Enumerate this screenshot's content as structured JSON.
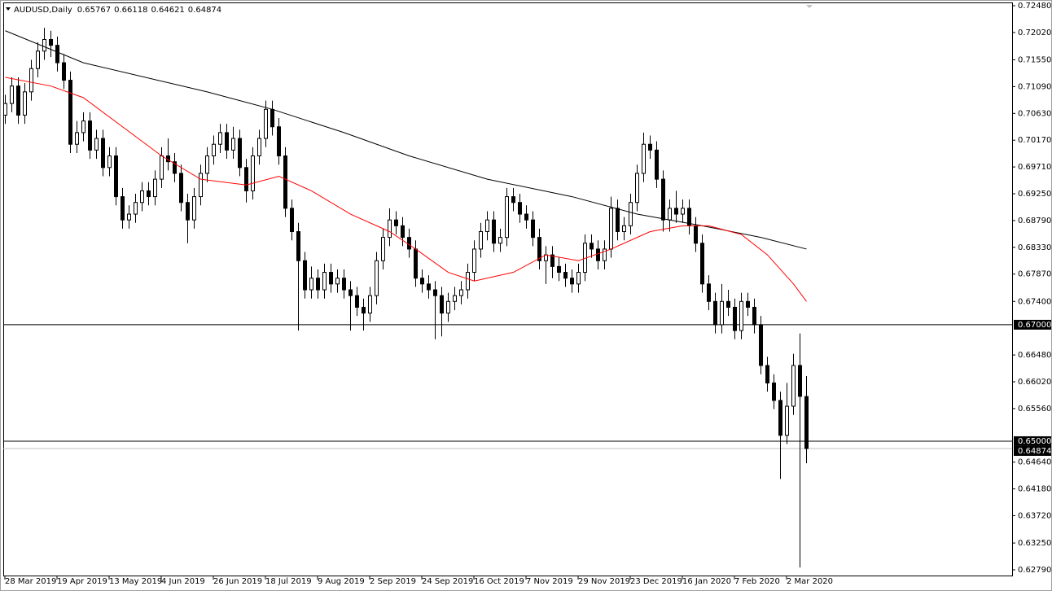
{
  "chart_data": {
    "type": "candlestick",
    "title": "AUDUSD,Daily",
    "categories": [
      "28 Mar 2019",
      null,
      null,
      null,
      null,
      null,
      null,
      null,
      "19 Apr 2019",
      null,
      null,
      null,
      null,
      null,
      null,
      null,
      "13 May 2019",
      null,
      null,
      null,
      null,
      null,
      null,
      null,
      "4 Jun 2019",
      null,
      null,
      null,
      null,
      null,
      null,
      null,
      "26 Jun 2019",
      null,
      null,
      null,
      null,
      null,
      null,
      null,
      "18 Jul 2019",
      null,
      null,
      null,
      null,
      null,
      null,
      null,
      "9 Aug 2019",
      null,
      null,
      null,
      null,
      null,
      null,
      null,
      "2 Sep 2019",
      null,
      null,
      null,
      null,
      null,
      null,
      null,
      "24 Sep 2019",
      null,
      null,
      null,
      null,
      null,
      null,
      null,
      "16 Oct 2019",
      null,
      null,
      null,
      null,
      null,
      null,
      null,
      "7 Nov 2019",
      null,
      null,
      null,
      null,
      null,
      null,
      null,
      "29 Nov 2019",
      null,
      null,
      null,
      null,
      null,
      null,
      null,
      "23 Dec 2019",
      null,
      null,
      null,
      null,
      null,
      null,
      null,
      "16 Jan 2020",
      null,
      null,
      null,
      null,
      null,
      null,
      null,
      "7 Feb 2020",
      null,
      null,
      null,
      null,
      null,
      null,
      null,
      "2 Mar 2020",
      null,
      null,
      null
    ],
    "candles": [
      [
        0.706,
        0.7095,
        0.7045,
        0.708
      ],
      [
        0.708,
        0.7125,
        0.7065,
        0.711
      ],
      [
        0.711,
        0.7125,
        0.7045,
        0.706
      ],
      [
        0.706,
        0.7115,
        0.7045,
        0.71
      ],
      [
        0.71,
        0.7155,
        0.7085,
        0.714
      ],
      [
        0.714,
        0.7185,
        0.7125,
        0.717
      ],
      [
        0.717,
        0.721,
        0.7155,
        0.719
      ],
      [
        0.719,
        0.7205,
        0.716,
        0.718
      ],
      [
        0.718,
        0.7195,
        0.7135,
        0.715
      ],
      [
        0.715,
        0.7165,
        0.7105,
        0.712
      ],
      [
        0.712,
        0.7135,
        0.6995,
        0.701
      ],
      [
        0.701,
        0.705,
        0.6995,
        0.703
      ],
      [
        0.703,
        0.7065,
        0.7015,
        0.705
      ],
      [
        0.705,
        0.7065,
        0.6985,
        0.7
      ],
      [
        0.7,
        0.7035,
        0.6985,
        0.702
      ],
      [
        0.702,
        0.7035,
        0.6955,
        0.697
      ],
      [
        0.697,
        0.7005,
        0.6955,
        0.699
      ],
      [
        0.699,
        0.7005,
        0.6905,
        0.692
      ],
      [
        0.692,
        0.6935,
        0.6865,
        0.688
      ],
      [
        0.688,
        0.6905,
        0.6865,
        0.689
      ],
      [
        0.689,
        0.6925,
        0.6875,
        0.691
      ],
      [
        0.691,
        0.6945,
        0.6895,
        0.693
      ],
      [
        0.693,
        0.6945,
        0.6905,
        0.692
      ],
      [
        0.692,
        0.6965,
        0.6905,
        0.695
      ],
      [
        0.695,
        0.7005,
        0.6935,
        0.699
      ],
      [
        0.699,
        0.702,
        0.6965,
        0.698
      ],
      [
        0.698,
        0.6995,
        0.6945,
        0.696
      ],
      [
        0.696,
        0.6975,
        0.6895,
        0.691
      ],
      [
        0.691,
        0.6925,
        0.684,
        0.688
      ],
      [
        0.688,
        0.6935,
        0.6865,
        0.692
      ],
      [
        0.692,
        0.6975,
        0.6905,
        0.696
      ],
      [
        0.696,
        0.7005,
        0.6945,
        0.699
      ],
      [
        0.699,
        0.7025,
        0.6975,
        0.701
      ],
      [
        0.701,
        0.7045,
        0.6995,
        0.703
      ],
      [
        0.703,
        0.7045,
        0.6985,
        0.7
      ],
      [
        0.7,
        0.704,
        0.6985,
        0.702
      ],
      [
        0.702,
        0.7035,
        0.6955,
        0.697
      ],
      [
        0.697,
        0.6985,
        0.691,
        0.693
      ],
      [
        0.693,
        0.7005,
        0.6915,
        0.699
      ],
      [
        0.699,
        0.7035,
        0.6975,
        0.702
      ],
      [
        0.702,
        0.7085,
        0.7005,
        0.707
      ],
      [
        0.707,
        0.7085,
        0.7025,
        0.704
      ],
      [
        0.704,
        0.7055,
        0.6975,
        0.699
      ],
      [
        0.699,
        0.7005,
        0.6885,
        0.69
      ],
      [
        0.69,
        0.6915,
        0.6845,
        0.686
      ],
      [
        0.686,
        0.6875,
        0.669,
        0.681
      ],
      [
        0.681,
        0.6825,
        0.6745,
        0.676
      ],
      [
        0.676,
        0.68,
        0.6745,
        0.678
      ],
      [
        0.678,
        0.6795,
        0.6745,
        0.676
      ],
      [
        0.676,
        0.6805,
        0.6745,
        0.679
      ],
      [
        0.679,
        0.6805,
        0.6755,
        0.677
      ],
      [
        0.677,
        0.6795,
        0.6755,
        0.678
      ],
      [
        0.678,
        0.6795,
        0.6745,
        0.676
      ],
      [
        0.676,
        0.6775,
        0.669,
        0.675
      ],
      [
        0.675,
        0.6765,
        0.6715,
        0.673
      ],
      [
        0.673,
        0.6745,
        0.669,
        0.672
      ],
      [
        0.672,
        0.6765,
        0.6705,
        0.675
      ],
      [
        0.675,
        0.6825,
        0.6735,
        0.681
      ],
      [
        0.681,
        0.6865,
        0.6795,
        0.685
      ],
      [
        0.685,
        0.69,
        0.6835,
        0.688
      ],
      [
        0.688,
        0.6895,
        0.6855,
        0.687
      ],
      [
        0.687,
        0.6885,
        0.6835,
        0.685
      ],
      [
        0.685,
        0.6865,
        0.6815,
        0.683
      ],
      [
        0.683,
        0.6845,
        0.6765,
        0.678
      ],
      [
        0.678,
        0.6795,
        0.6755,
        0.677
      ],
      [
        0.677,
        0.6785,
        0.6745,
        0.676
      ],
      [
        0.676,
        0.6775,
        0.6675,
        0.675
      ],
      [
        0.675,
        0.6765,
        0.668,
        0.672
      ],
      [
        0.672,
        0.6755,
        0.6705,
        0.674
      ],
      [
        0.674,
        0.6765,
        0.6725,
        0.675
      ],
      [
        0.675,
        0.6775,
        0.6735,
        0.676
      ],
      [
        0.676,
        0.6805,
        0.6745,
        0.679
      ],
      [
        0.679,
        0.6845,
        0.6775,
        0.683
      ],
      [
        0.683,
        0.6875,
        0.6815,
        0.686
      ],
      [
        0.686,
        0.6895,
        0.6845,
        0.688
      ],
      [
        0.688,
        0.6895,
        0.6825,
        0.684
      ],
      [
        0.684,
        0.6865,
        0.6825,
        0.685
      ],
      [
        0.685,
        0.6935,
        0.6835,
        0.692
      ],
      [
        0.692,
        0.6935,
        0.6895,
        0.691
      ],
      [
        0.691,
        0.6925,
        0.6875,
        0.689
      ],
      [
        0.689,
        0.6905,
        0.6865,
        0.688
      ],
      [
        0.688,
        0.6895,
        0.6835,
        0.685
      ],
      [
        0.685,
        0.6865,
        0.6795,
        0.681
      ],
      [
        0.681,
        0.6835,
        0.677,
        0.682
      ],
      [
        0.682,
        0.6835,
        0.678,
        0.68
      ],
      [
        0.68,
        0.6815,
        0.6775,
        0.679
      ],
      [
        0.679,
        0.6805,
        0.6765,
        0.678
      ],
      [
        0.678,
        0.6795,
        0.6755,
        0.677
      ],
      [
        0.677,
        0.6805,
        0.6755,
        0.679
      ],
      [
        0.679,
        0.6855,
        0.6775,
        0.684
      ],
      [
        0.684,
        0.6855,
        0.6815,
        0.683
      ],
      [
        0.683,
        0.6845,
        0.6795,
        0.681
      ],
      [
        0.681,
        0.6845,
        0.6795,
        0.683
      ],
      [
        0.683,
        0.692,
        0.6815,
        0.69
      ],
      [
        0.69,
        0.6915,
        0.6845,
        0.686
      ],
      [
        0.686,
        0.6885,
        0.6845,
        0.687
      ],
      [
        0.687,
        0.6925,
        0.6855,
        0.691
      ],
      [
        0.691,
        0.6975,
        0.6895,
        0.696
      ],
      [
        0.696,
        0.703,
        0.6945,
        0.701
      ],
      [
        0.701,
        0.7025,
        0.6985,
        0.7
      ],
      [
        0.7,
        0.7015,
        0.6935,
        0.695
      ],
      [
        0.695,
        0.6965,
        0.686,
        0.688
      ],
      [
        0.688,
        0.6915,
        0.686,
        0.69
      ],
      [
        0.69,
        0.693,
        0.6875,
        0.689
      ],
      [
        0.689,
        0.6915,
        0.6875,
        0.69
      ],
      [
        0.69,
        0.6915,
        0.6855,
        0.687
      ],
      [
        0.687,
        0.6885,
        0.6825,
        0.684
      ],
      [
        0.684,
        0.6855,
        0.6755,
        0.677
      ],
      [
        0.677,
        0.6785,
        0.6725,
        0.674
      ],
      [
        0.674,
        0.6755,
        0.6685,
        0.67
      ],
      [
        0.67,
        0.677,
        0.6685,
        0.674
      ],
      [
        0.674,
        0.676,
        0.6715,
        0.673
      ],
      [
        0.673,
        0.6745,
        0.6675,
        0.669
      ],
      [
        0.669,
        0.6755,
        0.6675,
        0.674
      ],
      [
        0.674,
        0.6755,
        0.6715,
        0.673
      ],
      [
        0.673,
        0.6745,
        0.6685,
        0.67
      ],
      [
        0.67,
        0.6715,
        0.6615,
        0.663
      ],
      [
        0.663,
        0.6645,
        0.6585,
        0.66
      ],
      [
        0.66,
        0.6615,
        0.6555,
        0.657
      ],
      [
        0.657,
        0.6585,
        0.6435,
        0.651
      ],
      [
        0.651,
        0.66,
        0.6495,
        0.656
      ],
      [
        0.656,
        0.665,
        0.6545,
        0.663
      ],
      [
        0.663,
        0.6685,
        0.6283,
        0.6577
      ],
      [
        0.65767,
        0.66118,
        0.64621,
        0.64874
      ]
    ],
    "moving_averages": [
      {
        "color": "#000000",
        "x": [
          0,
          12,
          31,
          41,
          52,
          62,
          74,
          87,
          97,
          107,
          116,
          123
        ],
        "values": [
          0.7205,
          0.715,
          0.71,
          0.707,
          0.703,
          0.699,
          0.695,
          0.692,
          0.689,
          0.687,
          0.685,
          0.683
        ]
      },
      {
        "color": "#ff0000",
        "x": [
          0,
          7,
          12,
          18,
          24,
          30,
          37,
          42,
          47,
          53,
          59,
          63,
          68,
          72,
          78,
          83,
          88,
          93,
          99,
          104,
          108,
          113,
          117,
          121,
          123
        ],
        "values": [
          0.7125,
          0.711,
          0.709,
          0.704,
          0.699,
          0.695,
          0.694,
          0.6955,
          0.693,
          0.689,
          0.686,
          0.683,
          0.679,
          0.6775,
          0.679,
          0.682,
          0.681,
          0.683,
          0.686,
          0.687,
          0.687,
          0.6855,
          0.682,
          0.677,
          0.674
        ]
      }
    ],
    "levels": [
      {
        "value": 0.67,
        "label": "0.67000"
      },
      {
        "value": 0.65,
        "label": "0.65000"
      }
    ],
    "last_price": {
      "value": 0.64874,
      "label": "0.64874"
    },
    "ylim": [
      0.62678,
      0.72536
    ],
    "yticks": [
      {
        "value": 0.7248,
        "label": "0.72480"
      },
      {
        "value": 0.7202,
        "label": "0.72020"
      },
      {
        "value": 0.7155,
        "label": "0.71550"
      },
      {
        "value": 0.7109,
        "label": "0.71090"
      },
      {
        "value": 0.7063,
        "label": "0.70630"
      },
      {
        "value": 0.7017,
        "label": "0.70170"
      },
      {
        "value": 0.6971,
        "label": "0.69710"
      },
      {
        "value": 0.6925,
        "label": "0.69250"
      },
      {
        "value": 0.6879,
        "label": "0.68790"
      },
      {
        "value": 0.6833,
        "label": "0.68330"
      },
      {
        "value": 0.6787,
        "label": "0.67870"
      },
      {
        "value": 0.674,
        "label": "0.67400"
      },
      {
        "value": 0.6648,
        "label": "0.66480"
      },
      {
        "value": 0.6602,
        "label": "0.66020"
      },
      {
        "value": 0.6556,
        "label": "0.65560"
      },
      {
        "value": 0.6464,
        "label": "0.64640"
      },
      {
        "value": 0.6418,
        "label": "0.64180"
      },
      {
        "value": 0.6372,
        "label": "0.63720"
      },
      {
        "value": 0.6325,
        "label": "0.63250"
      },
      {
        "value": 0.6279,
        "label": "0.62790"
      }
    ]
  }
}
